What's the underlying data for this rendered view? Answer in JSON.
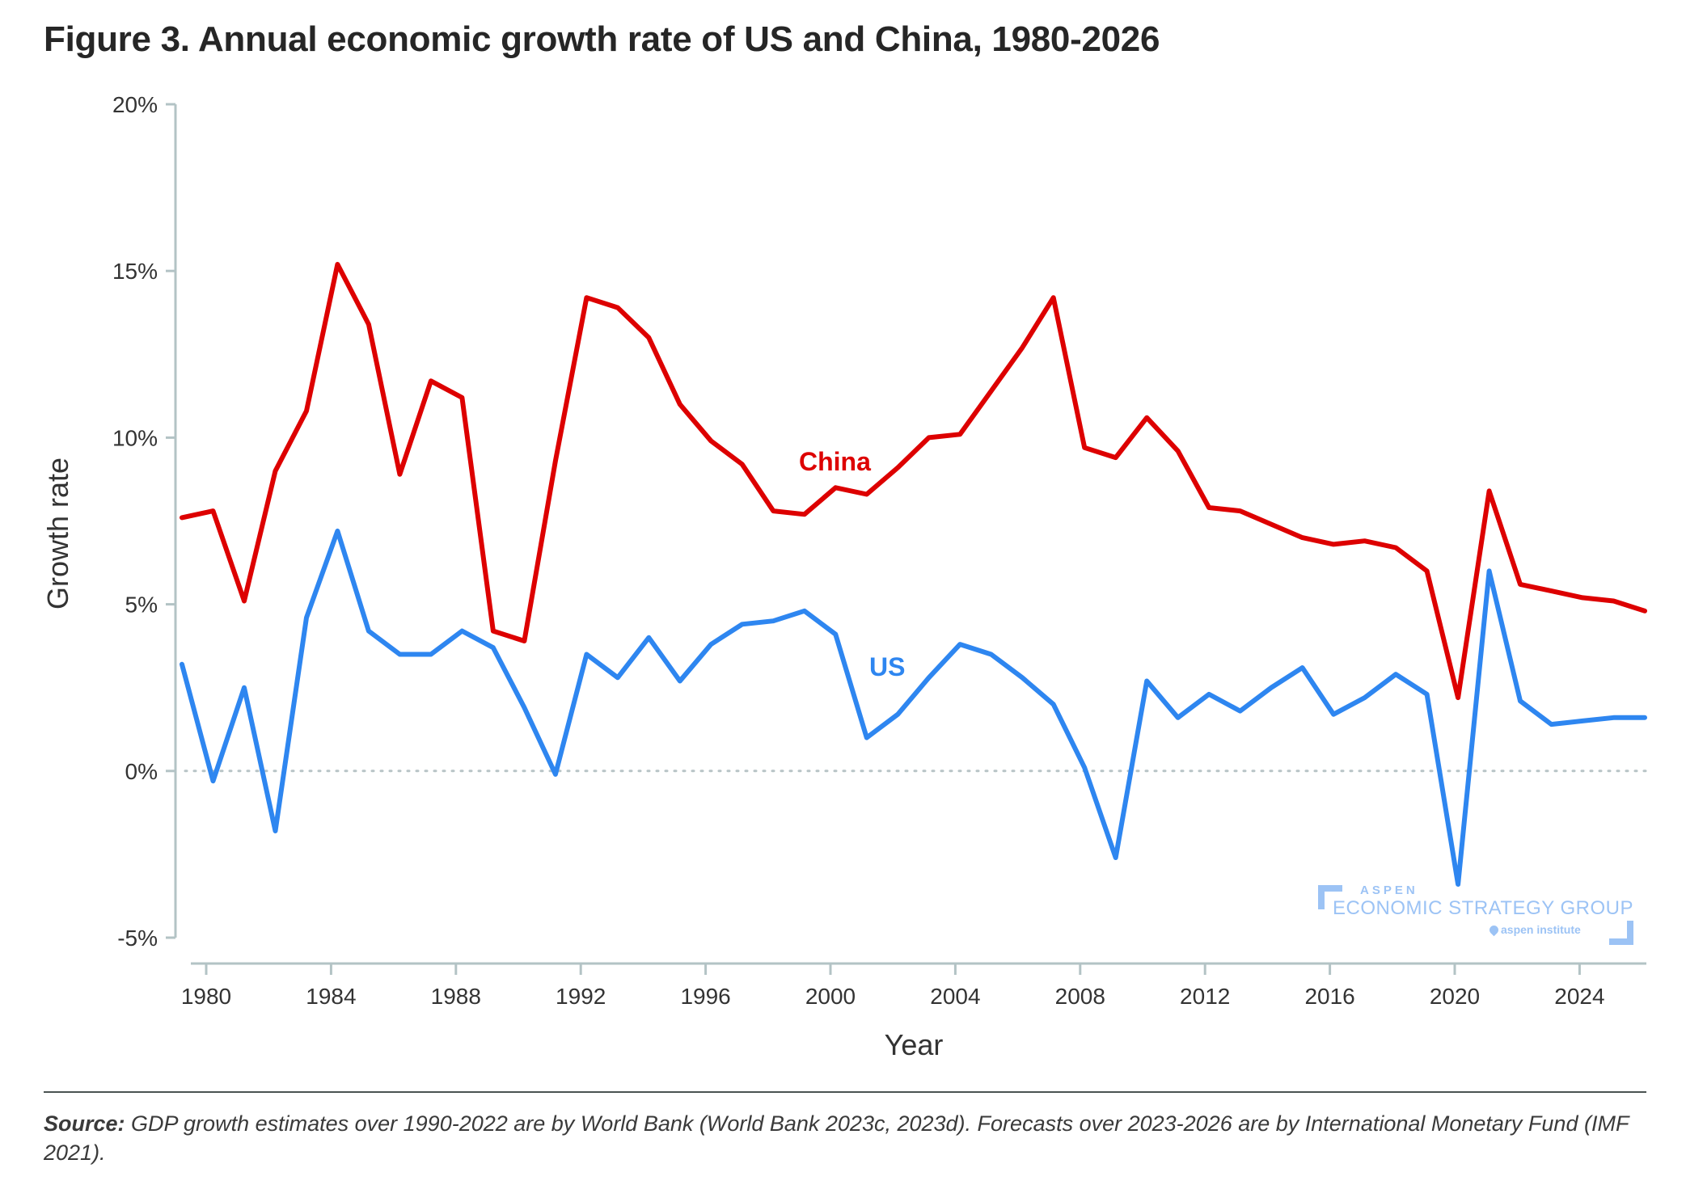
{
  "title": "Figure 3. Annual economic growth rate of US and China, 1980-2026",
  "footer": {
    "source_label": "Source:",
    "source_text": " GDP growth estimates over 1990-2022 are by World Bank (World Bank 2023c, 2023d). Forecasts over 2023-2026 are by International Monetary Fund (IMF 2021)."
  },
  "watermark": {
    "line1": "ASPEN",
    "line2": "ECONOMIC STRATEGY GROUP",
    "line3": "aspen institute"
  },
  "colors": {
    "china": "#dd0000",
    "us": "#2e86f0",
    "axis": "#b3c3c5",
    "zero_line": "#b8c4c6"
  },
  "chart_data": {
    "type": "line",
    "title": "Figure 3. Annual economic growth rate of US and China, 1980-2026",
    "xlabel": "Year",
    "ylabel": "Growth rate",
    "ylim": [
      -5,
      20
    ],
    "xlim": [
      1979,
      2026
    ],
    "yticks": [
      -5,
      0,
      5,
      10,
      15,
      20
    ],
    "ytick_labels": [
      "-5%",
      "0%",
      "5%",
      "10%",
      "15%",
      "20%"
    ],
    "xticks": [
      1980,
      1984,
      1988,
      1992,
      1996,
      2000,
      2004,
      2008,
      2012,
      2016,
      2020,
      2024
    ],
    "xtick_labels": [
      "1980",
      "1984",
      "1988",
      "1992",
      "1996",
      "2000",
      "2004",
      "2008",
      "2012",
      "2016",
      "2020",
      "2024"
    ],
    "zero_line": "dotted",
    "grid": false,
    "legend": "inline-labels",
    "x": [
      1979,
      1980,
      1981,
      1982,
      1983,
      1984,
      1985,
      1986,
      1987,
      1988,
      1989,
      1990,
      1991,
      1992,
      1993,
      1994,
      1995,
      1996,
      1997,
      1998,
      1999,
      2000,
      2001,
      2002,
      2003,
      2004,
      2005,
      2006,
      2007,
      2008,
      2009,
      2010,
      2011,
      2012,
      2013,
      2014,
      2015,
      2016,
      2017,
      2018,
      2019,
      2020,
      2021,
      2022,
      2023,
      2024,
      2025,
      2026
    ],
    "series": [
      {
        "name": "China",
        "label": "China",
        "values": [
          7.6,
          7.8,
          5.1,
          9.0,
          10.8,
          15.2,
          13.4,
          8.9,
          11.7,
          11.2,
          4.2,
          3.9,
          9.3,
          14.2,
          13.9,
          13.0,
          11.0,
          9.9,
          9.2,
          7.8,
          7.7,
          8.5,
          8.3,
          9.1,
          10.0,
          10.1,
          11.4,
          12.7,
          14.2,
          9.7,
          9.4,
          10.6,
          9.6,
          7.9,
          7.8,
          7.4,
          7.0,
          6.8,
          6.9,
          6.7,
          6.0,
          2.2,
          8.4,
          5.6,
          5.4,
          5.2,
          5.1,
          4.8
        ]
      },
      {
        "name": "US",
        "label": "US",
        "values": [
          3.2,
          -0.3,
          2.5,
          -1.8,
          4.6,
          7.2,
          4.2,
          3.5,
          3.5,
          4.2,
          3.7,
          1.9,
          -0.1,
          3.5,
          2.8,
          4.0,
          2.7,
          3.8,
          4.4,
          4.5,
          4.8,
          4.1,
          1.0,
          1.7,
          2.8,
          3.8,
          3.5,
          2.8,
          2.0,
          0.1,
          -2.6,
          2.7,
          1.6,
          2.3,
          1.8,
          2.5,
          3.1,
          1.7,
          2.2,
          2.9,
          2.3,
          -3.4,
          6.0,
          2.1,
          1.4,
          1.5,
          1.6,
          1.6
        ]
      }
    ]
  }
}
